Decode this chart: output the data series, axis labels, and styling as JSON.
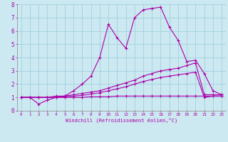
{
  "xlabel": "Windchill (Refroidissement éolien,°C)",
  "ylabel": "",
  "bg_color": "#cce8f0",
  "grid_color": "#99ccdd",
  "line_color": "#aa00aa",
  "xlim": [
    -0.5,
    23.5
  ],
  "ylim": [
    0,
    8
  ],
  "xticks": [
    0,
    1,
    2,
    3,
    4,
    5,
    6,
    7,
    8,
    9,
    10,
    11,
    12,
    13,
    14,
    15,
    16,
    17,
    18,
    19,
    20,
    21,
    22,
    23
  ],
  "yticks": [
    0,
    1,
    2,
    3,
    4,
    5,
    6,
    7,
    8
  ],
  "series": [
    [
      1.0,
      1.0,
      0.5,
      0.8,
      1.0,
      1.1,
      1.5,
      2.0,
      2.6,
      4.0,
      6.5,
      5.5,
      4.7,
      7.0,
      7.6,
      7.7,
      7.8,
      6.3,
      5.3,
      3.7,
      3.8,
      2.8,
      1.5,
      1.2
    ],
    [
      1.0,
      1.0,
      1.0,
      1.0,
      1.1,
      1.1,
      1.2,
      1.3,
      1.4,
      1.5,
      1.7,
      1.9,
      2.1,
      2.3,
      2.6,
      2.8,
      3.0,
      3.1,
      3.2,
      3.4,
      3.6,
      1.2,
      1.2,
      1.2
    ],
    [
      1.0,
      1.0,
      1.0,
      1.0,
      1.0,
      1.05,
      1.1,
      1.15,
      1.25,
      1.35,
      1.5,
      1.65,
      1.8,
      2.0,
      2.2,
      2.35,
      2.5,
      2.6,
      2.7,
      2.8,
      2.9,
      1.0,
      1.1,
      1.1
    ],
    [
      1.0,
      1.0,
      1.0,
      1.0,
      1.0,
      1.0,
      1.0,
      1.0,
      1.05,
      1.05,
      1.05,
      1.1,
      1.1,
      1.1,
      1.1,
      1.1,
      1.1,
      1.1,
      1.1,
      1.1,
      1.1,
      1.1,
      1.1,
      1.1
    ]
  ]
}
